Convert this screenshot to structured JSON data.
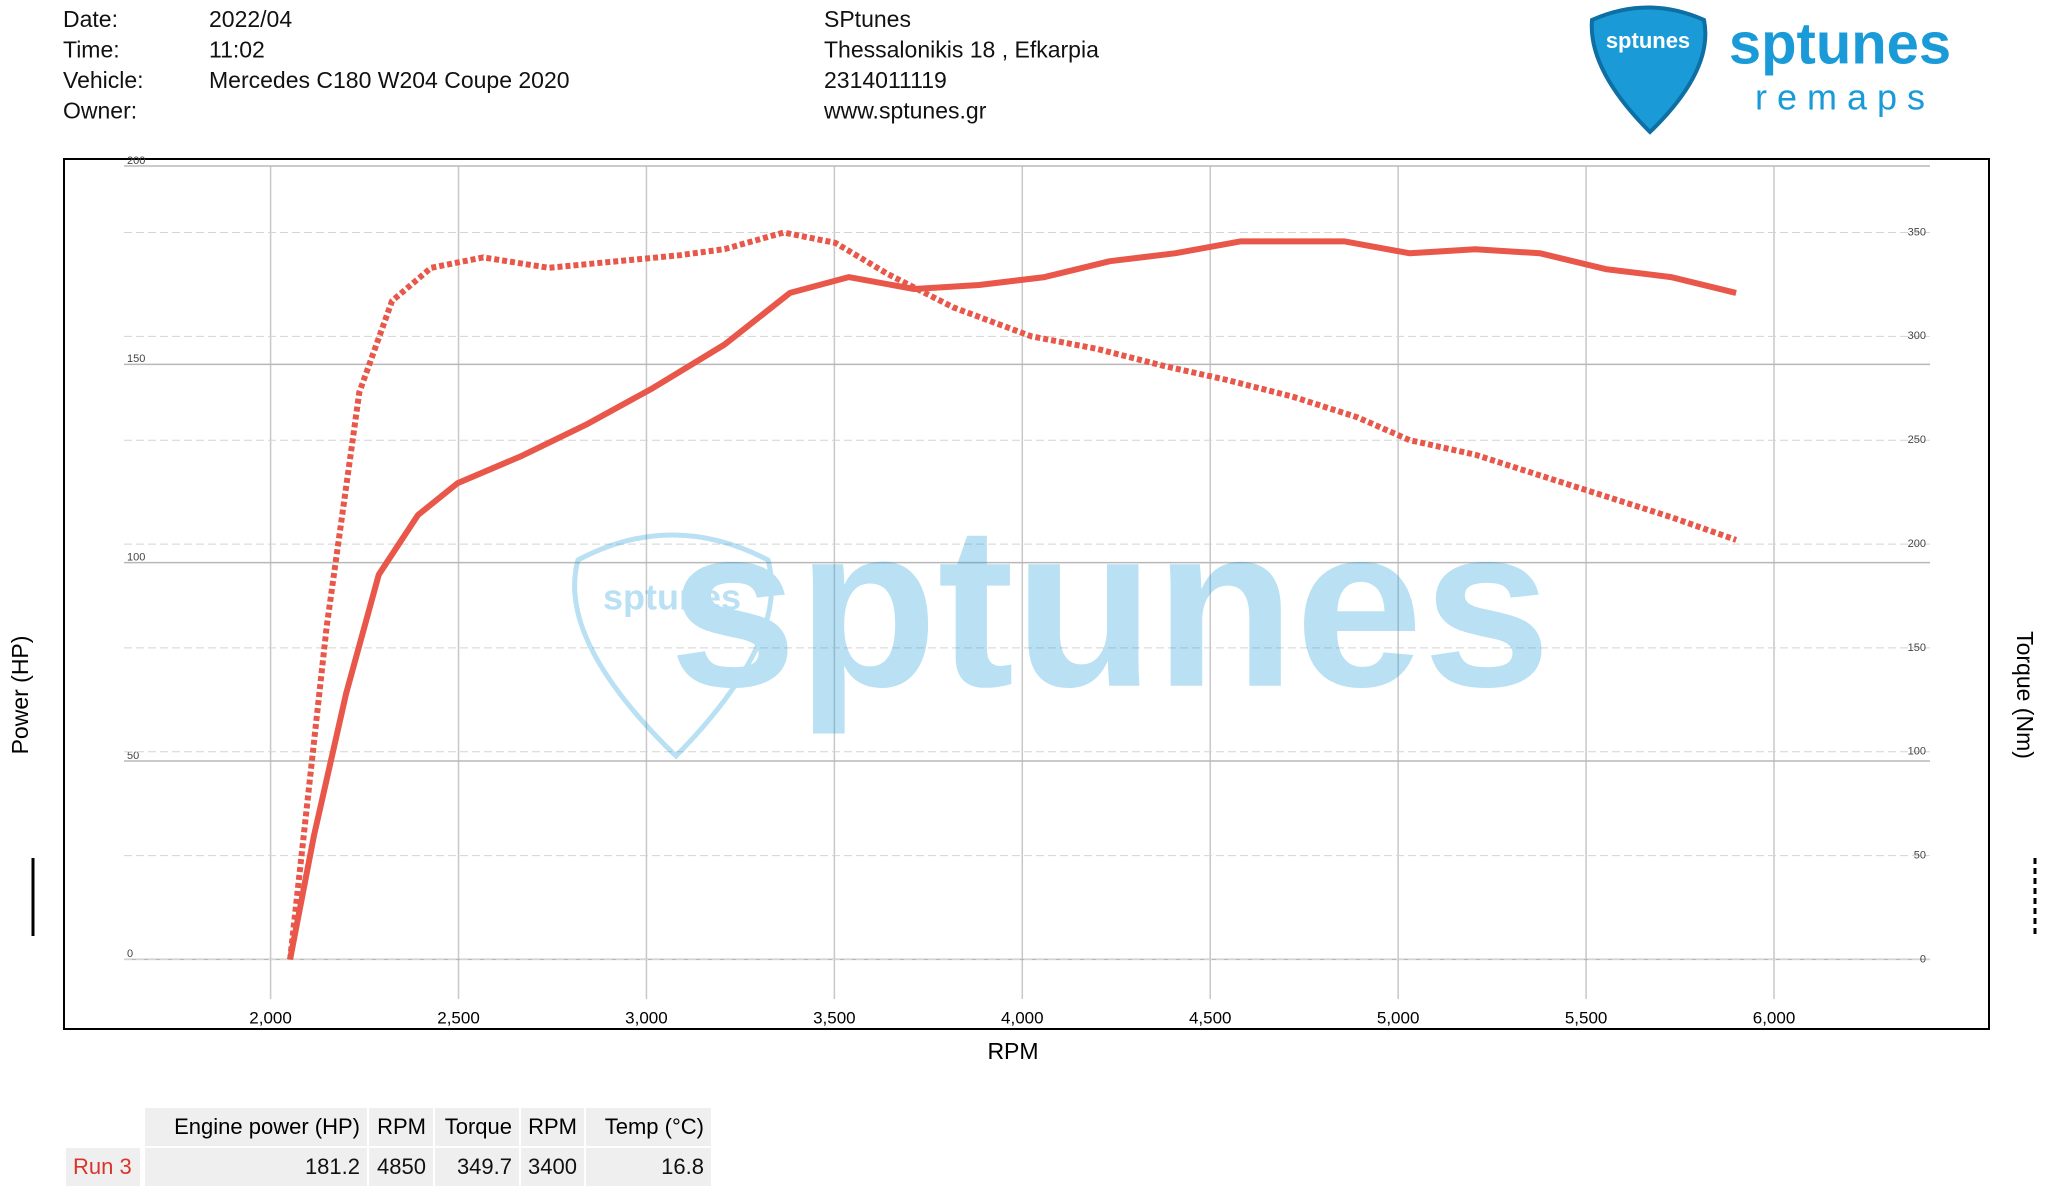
{
  "header": {
    "fields": [
      {
        "label": "Date:",
        "value": "2022/04"
      },
      {
        "label": "Time:",
        "value": "11:02"
      },
      {
        "label": "Vehicle:",
        "value": "Mercedes C180 W204 Coupe 2020"
      },
      {
        "label": "Owner:"
      }
    ],
    "company": [
      "SPtunes",
      "Thessalonikis 18 , Efkarpia",
      "2314011119",
      "www.sptunes.gr"
    ]
  },
  "logo": {
    "name": "sptunes",
    "tagline": "r e m a p s"
  },
  "chart_data": {
    "type": "line",
    "x_label": "RPM",
    "y_label": "Power (HP)",
    "y2_label": "Torque (Nm)",
    "xlim": [
      1610,
      6415
    ],
    "xticks": [
      {
        "value": 2000,
        "label": "2,000"
      },
      {
        "value": 2500,
        "label": "2,500"
      },
      {
        "value": 3000,
        "label": "3,000"
      },
      {
        "value": 3500,
        "label": "3,500"
      },
      {
        "value": 4000,
        "label": "4,000"
      },
      {
        "value": 4500,
        "label": "4,500"
      },
      {
        "value": 5000,
        "label": "5,000"
      },
      {
        "value": 5500,
        "label": "5,500"
      },
      {
        "value": 6000,
        "label": "6,000"
      }
    ],
    "ylim": [
      -10,
      200
    ],
    "yticks": [
      0,
      50,
      100,
      150,
      200
    ],
    "y2lim": [
      -19,
      382
    ],
    "y2ticks": [
      0,
      50,
      100,
      150,
      200,
      250,
      300,
      350
    ],
    "grid": true,
    "series": [
      {
        "name": "Engine power (HP)",
        "color": "#e8574a",
        "style": "solid",
        "x": [
          2052,
          2115,
          2201,
          2288,
          2392,
          2497,
          2670,
          2844,
          3017,
          3208,
          3382,
          3538,
          3712,
          3885,
          4059,
          4233,
          4406,
          4580,
          4858,
          5031,
          5205,
          5378,
          5552,
          5726,
          5899
        ],
        "values": [
          0,
          31,
          67,
          97,
          112,
          120,
          127,
          135,
          144,
          155,
          168,
          172,
          169,
          170,
          172,
          176,
          178,
          181,
          181,
          178,
          179,
          178,
          174,
          172,
          168
        ]
      },
      {
        "name": "Torque",
        "color": "#e8574a",
        "style": "dotted",
        "axis": "y2",
        "x": [
          2052,
          2149,
          2236,
          2323,
          2427,
          2566,
          2740,
          2913,
          3087,
          3208,
          3365,
          3503,
          3642,
          3816,
          4024,
          4198,
          4371,
          4545,
          4719,
          4892,
          5031,
          5205,
          5378,
          5552,
          5726,
          5899
        ],
        "values": [
          0,
          160,
          273,
          317,
          333,
          338,
          333,
          336,
          339,
          342,
          350,
          345,
          330,
          314,
          300,
          294,
          286,
          279,
          271,
          261,
          250,
          243,
          233,
          223,
          213,
          202
        ]
      }
    ]
  },
  "table": {
    "headers": [
      "Engine power (HP)",
      "RPM",
      "Torque",
      "RPM",
      "Temp (°C)"
    ],
    "rows": [
      [
        "Run 3",
        181.2,
        4850,
        349.7,
        3400,
        16.8
      ]
    ]
  }
}
